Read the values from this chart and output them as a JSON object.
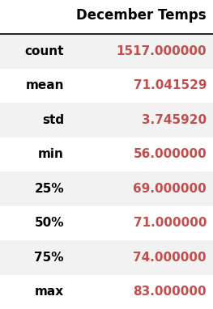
{
  "title": "December Temps",
  "rows": [
    {
      "label": "count",
      "value": "1517.000000"
    },
    {
      "label": "mean",
      "value": "71.041529"
    },
    {
      "label": "std",
      "value": "3.745920"
    },
    {
      "label": "min",
      "value": "56.000000"
    },
    {
      "label": "25%",
      "value": "69.000000"
    },
    {
      "label": "50%",
      "value": "71.000000"
    },
    {
      "label": "75%",
      "value": "74.000000"
    },
    {
      "label": "max",
      "value": "83.000000"
    }
  ],
  "bg_white": "#ffffff",
  "bg_gray": "#f2f2f2",
  "label_color": "#000000",
  "value_color": "#c0504d",
  "title_color": "#000000",
  "header_line_color": "#000000",
  "title_fontsize": 12,
  "cell_fontsize": 11
}
